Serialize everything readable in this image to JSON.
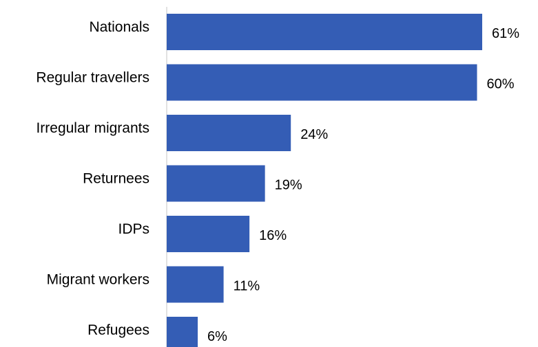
{
  "chart_data": {
    "type": "bar",
    "orientation": "horizontal",
    "categories": [
      "Nationals",
      "Regular travellers",
      "Irregular migrants",
      "Returnees",
      "IDPs",
      "Migrant workers",
      "Refugees"
    ],
    "values": [
      61,
      60,
      24,
      19,
      16,
      11,
      6
    ],
    "value_labels": [
      "61%",
      "60%",
      "24%",
      "19%",
      "16%",
      "11%",
      "6%"
    ],
    "unit": "%",
    "xlim": [
      0,
      61
    ],
    "grid": false,
    "legend": "none",
    "bar_color": "#345DB5",
    "axis_color": "#D9D9D9"
  }
}
